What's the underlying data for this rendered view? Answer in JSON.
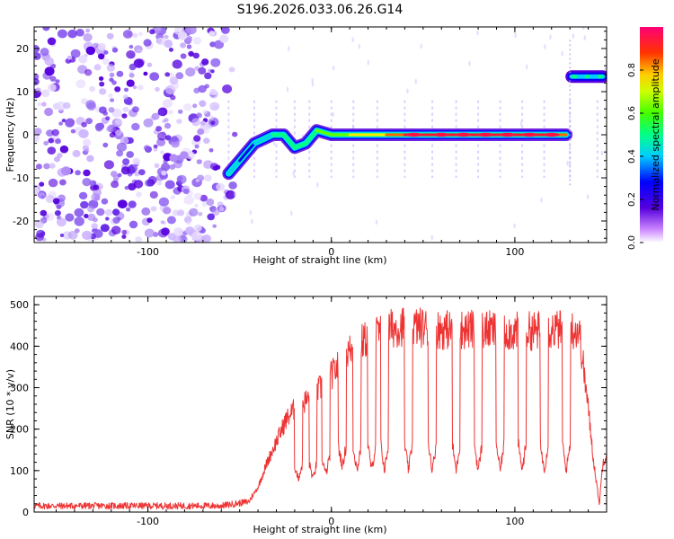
{
  "title": "S196.2026.033.06.26.G14",
  "chart_data": [
    {
      "type": "heatmap",
      "xlabel": "Height of straight line (km)",
      "ylabel": "Frequency (Hz)",
      "xlim": [
        -162,
        150
      ],
      "ylim": [
        -25,
        25
      ],
      "x_ticks": [
        -100,
        0,
        100
      ],
      "y_ticks": [
        -20,
        -10,
        0,
        10,
        20
      ],
      "colorbar": {
        "label": "Normalized spectral amplitude",
        "range": [
          0,
          1
        ],
        "ticks": [
          "0.0",
          "0.2",
          "0.4",
          "0.6",
          "0.8"
        ]
      },
      "colormap": [
        "#ffffff",
        "#b8a0f0",
        "#5500dd",
        "#0000ff",
        "#00e5ff",
        "#00ff66",
        "#aaff00",
        "#ffcc00",
        "#ff4400",
        "#ff0066"
      ],
      "noise_region_x": [
        -162,
        -56
      ],
      "ridge": [
        {
          "x": -56,
          "f": -9,
          "amp": 0.35
        },
        {
          "x": -50,
          "f": -6,
          "amp": 0.3
        },
        {
          "x": -46,
          "f": -4,
          "amp": 0.3
        },
        {
          "x": -42,
          "f": -2,
          "amp": 0.3
        },
        {
          "x": -37,
          "f": -1,
          "amp": 0.35
        },
        {
          "x": -32,
          "f": 0,
          "amp": 0.45
        },
        {
          "x": -26,
          "f": 0,
          "amp": 0.5
        },
        {
          "x": -20,
          "f": -3,
          "amp": 0.45
        },
        {
          "x": -14,
          "f": -2,
          "amp": 0.45
        },
        {
          "x": -8,
          "f": 1,
          "amp": 0.5
        },
        {
          "x": 0,
          "f": 0,
          "amp": 0.55
        },
        {
          "x": 10,
          "f": 0,
          "amp": 0.6
        },
        {
          "x": 20,
          "f": 0,
          "amp": 0.65
        },
        {
          "x": 30,
          "f": 0,
          "amp": 0.75
        },
        {
          "x": 40,
          "f": 0,
          "amp": 0.85
        },
        {
          "x": 60,
          "f": 0,
          "amp": 0.9
        },
        {
          "x": 80,
          "f": 0,
          "amp": 0.9
        },
        {
          "x": 100,
          "f": 0,
          "amp": 0.9
        },
        {
          "x": 120,
          "f": 0,
          "amp": 0.85
        },
        {
          "x": 128,
          "f": 0,
          "amp": 0.7
        }
      ],
      "jump_segment": {
        "x": [
          131,
          148
        ],
        "f": 13.5,
        "amp": 0.5
      }
    },
    {
      "type": "line",
      "xlabel": "Height of straight line (km)",
      "ylabel": "SNR (10 * v/v)",
      "xlim": [
        -162,
        150
      ],
      "ylim": [
        0,
        520
      ],
      "x_ticks": [
        -100,
        0,
        100
      ],
      "y_ticks": [
        0,
        100,
        200,
        300,
        400,
        500
      ],
      "color": "#ee3333",
      "envelope": [
        {
          "x": -162,
          "y": 15
        },
        {
          "x": -60,
          "y": 15
        },
        {
          "x": -45,
          "y": 25
        },
        {
          "x": -40,
          "y": 60
        },
        {
          "x": -35,
          "y": 120
        },
        {
          "x": -30,
          "y": 170
        },
        {
          "x": -25,
          "y": 220
        },
        {
          "x": -20,
          "y": 250
        },
        {
          "x": -10,
          "y": 280
        },
        {
          "x": 0,
          "y": 330
        },
        {
          "x": 10,
          "y": 390
        },
        {
          "x": 20,
          "y": 420
        },
        {
          "x": 30,
          "y": 440
        },
        {
          "x": 40,
          "y": 450
        },
        {
          "x": 60,
          "y": 440
        },
        {
          "x": 80,
          "y": 440
        },
        {
          "x": 100,
          "y": 435
        },
        {
          "x": 120,
          "y": 440
        },
        {
          "x": 135,
          "y": 440
        },
        {
          "x": 140,
          "y": 250
        },
        {
          "x": 143,
          "y": 120
        },
        {
          "x": 146,
          "y": 20
        },
        {
          "x": 148,
          "y": 120
        },
        {
          "x": 150,
          "y": 140
        }
      ],
      "dips": [
        {
          "x": -18,
          "y": 80
        },
        {
          "x": -10,
          "y": 80
        },
        {
          "x": -3,
          "y": 90
        },
        {
          "x": 6,
          "y": 110
        },
        {
          "x": 14,
          "y": 100
        },
        {
          "x": 22,
          "y": 100
        },
        {
          "x": 29,
          "y": 100
        },
        {
          "x": 42,
          "y": 100
        },
        {
          "x": 55,
          "y": 100
        },
        {
          "x": 68,
          "y": 100
        },
        {
          "x": 80,
          "y": 100
        },
        {
          "x": 92,
          "y": 100
        },
        {
          "x": 104,
          "y": 100
        },
        {
          "x": 116,
          "y": 100
        },
        {
          "x": 128,
          "y": 100
        }
      ]
    }
  ]
}
